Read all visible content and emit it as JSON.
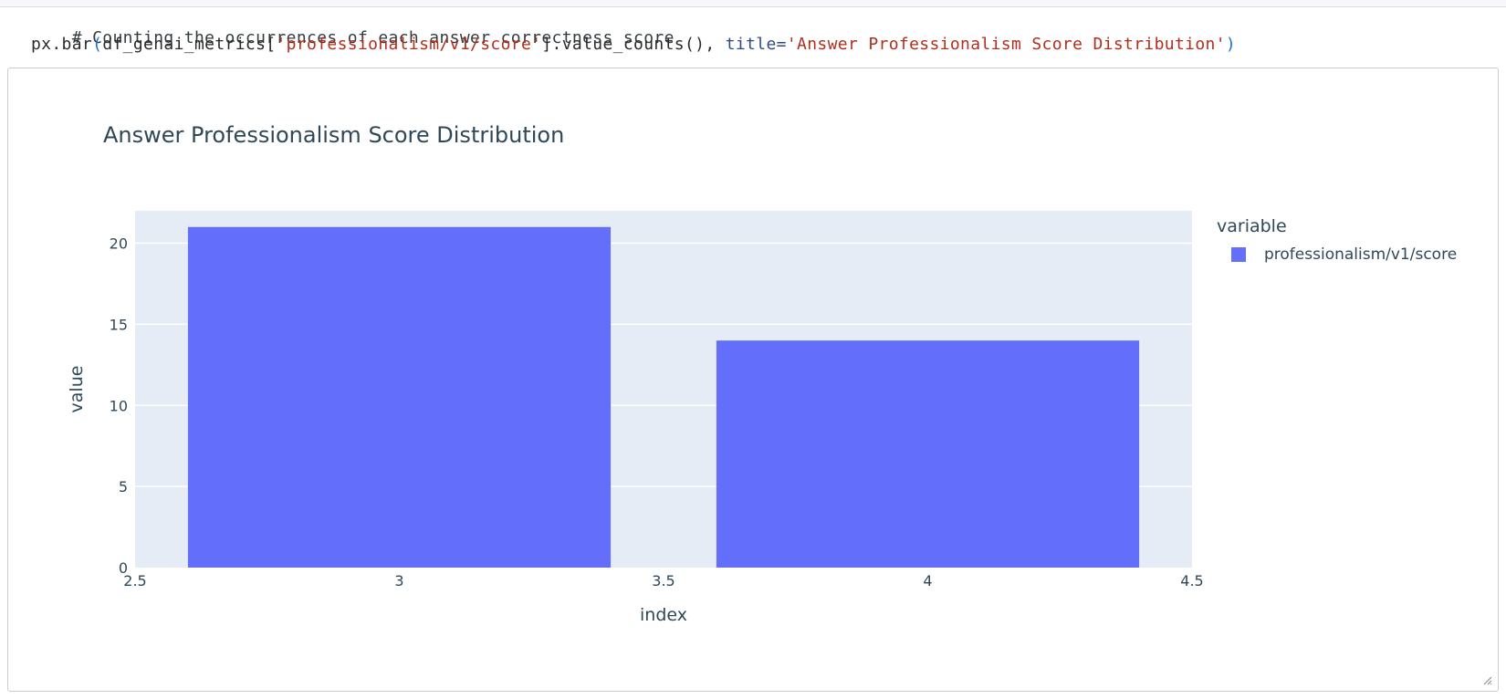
{
  "code": {
    "comment": "# Counting the occurrences of each answer correctness score",
    "line2": {
      "fn": "px.bar",
      "open_paren": "(",
      "df": "df_genai_metrics[",
      "col": "'professionalism/v1/score'",
      "call": "].value_counts(), ",
      "kw": "title=",
      "title_str": "'Answer Professionalism Score Distribution'",
      "close_paren": ")"
    }
  },
  "chart_data": {
    "type": "bar",
    "title": "Answer Professionalism Score Distribution",
    "xlabel": "index",
    "ylabel": "value",
    "x": [
      3,
      4
    ],
    "series": [
      {
        "name": "professionalism/v1/score",
        "values": [
          21,
          14
        ],
        "color": "#636efa"
      }
    ],
    "xlim": [
      2.5,
      4.5
    ],
    "ylim": [
      0,
      22
    ],
    "xticks": [
      "2.5",
      "3",
      "3.5",
      "4",
      "4.5"
    ],
    "yticks": [
      "0",
      "5",
      "10",
      "15",
      "20"
    ],
    "grid": true,
    "plot_bg": "#e5ecf6",
    "legend": {
      "title": "variable",
      "placement": "right"
    }
  }
}
